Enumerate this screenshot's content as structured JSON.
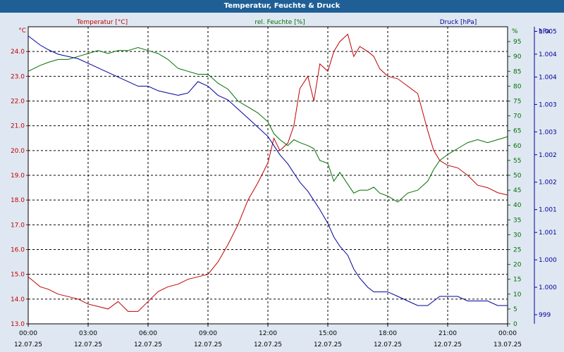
{
  "title": "Temperatur, Feuchte & Druck",
  "colors": {
    "temperature": "#c00000",
    "humidity": "#007000",
    "pressure": "#000099",
    "grid": "#000000",
    "title_bg": "#1f5f95"
  },
  "chart_data": {
    "type": "line",
    "grid": true,
    "x_axis": {
      "ticks": [
        "00:00",
        "03:00",
        "06:00",
        "09:00",
        "12:00",
        "15:00",
        "18:00",
        "21:00",
        "00:00"
      ],
      "dates": [
        "12.07.25",
        "12.07.25",
        "12.07.25",
        "12.07.25",
        "12.07.25",
        "12.07.25",
        "12.07.25",
        "12.07.25",
        "13.07.25"
      ],
      "xlim": [
        0,
        24
      ]
    },
    "axes": {
      "temperature": {
        "unit": "°C",
        "label": "Temperatur [°C]",
        "ylim": [
          13.0,
          25.0
        ],
        "ticks": [
          "13.0",
          "14.0",
          "15.0",
          "16.0",
          "17.0",
          "18.0",
          "19.0",
          "20.0",
          "21.0",
          "22.0",
          "23.0",
          "24.0"
        ],
        "tick_values": [
          13,
          14,
          15,
          16,
          17,
          18,
          19,
          20,
          21,
          22,
          23,
          24
        ]
      },
      "humidity": {
        "unit": "%",
        "label": "rel. Feuchte [%]",
        "ylim": [
          0,
          100
        ],
        "ticks": [
          "0",
          "5",
          "10",
          "15",
          "20",
          "25",
          "30",
          "35",
          "40",
          "45",
          "50",
          "55",
          "60",
          "65",
          "70",
          "75",
          "80",
          "85",
          "90",
          "95"
        ],
        "tick_values": [
          0,
          5,
          10,
          15,
          20,
          25,
          30,
          35,
          40,
          45,
          50,
          55,
          60,
          65,
          70,
          75,
          80,
          85,
          90,
          95
        ]
      },
      "pressure": {
        "unit": "hPa",
        "label": "Druck [hPa]",
        "ylim": [
          998.8,
          1005.3
        ],
        "ticks": [
          "999",
          "1.000",
          "1.000",
          "1.001",
          "1.001",
          "1.002",
          "1.002",
          "1.003",
          "1.003",
          "1.004",
          "1.004",
          "1.005"
        ],
        "tick_values": [
          999.0,
          999.6,
          1000.2,
          1000.8,
          1001.3,
          1001.9,
          1002.5,
          1003.0,
          1003.6,
          1004.2,
          1004.7,
          1005.2
        ]
      }
    },
    "series": [
      {
        "name": "Temperatur [°C]",
        "axis": "temperature",
        "x": [
          0,
          0.3,
          0.6,
          1,
          1.5,
          2,
          2.5,
          3,
          3.5,
          4,
          4.5,
          5,
          5.5,
          6,
          6.5,
          7,
          7.5,
          8,
          8.5,
          9,
          9.5,
          10,
          10.5,
          11,
          11.5,
          12,
          12.3,
          12.6,
          13,
          13.3,
          13.6,
          14,
          14.3,
          14.6,
          15,
          15.3,
          15.6,
          16,
          16.3,
          16.6,
          17,
          17.3,
          17.6,
          18,
          18.5,
          19,
          19.5,
          20,
          20.3,
          20.6,
          21,
          21.5,
          22,
          22.5,
          23,
          23.5,
          24
        ],
        "y": [
          14.9,
          14.7,
          14.5,
          14.4,
          14.2,
          14.1,
          14.0,
          13.8,
          13.7,
          13.6,
          13.9,
          13.5,
          13.5,
          13.9,
          14.3,
          14.5,
          14.6,
          14.8,
          14.9,
          15.0,
          15.5,
          16.2,
          17.0,
          18.0,
          18.7,
          19.5,
          20.5,
          20.0,
          20.3,
          21.0,
          22.5,
          23.0,
          22.0,
          23.5,
          23.2,
          24.0,
          24.4,
          24.7,
          23.8,
          24.2,
          24.0,
          23.8,
          23.3,
          23.0,
          22.9,
          22.6,
          22.3,
          20.8,
          20.0,
          19.6,
          19.4,
          19.3,
          19.0,
          18.6,
          18.5,
          18.3,
          18.2
        ]
      },
      {
        "name": "rel. Feuchte [%]",
        "axis": "humidity",
        "x": [
          0,
          0.3,
          0.6,
          1,
          1.5,
          2,
          2.5,
          3,
          3.5,
          4,
          4.5,
          5,
          5.5,
          6,
          6.5,
          7,
          7.5,
          8,
          8.5,
          9,
          9.5,
          10,
          10.5,
          11,
          11.5,
          12,
          12.3,
          12.6,
          13,
          13.3,
          13.6,
          14,
          14.3,
          14.6,
          15,
          15.3,
          15.6,
          16,
          16.3,
          16.6,
          17,
          17.3,
          17.6,
          18,
          18.5,
          19,
          19.5,
          20,
          20.3,
          20.6,
          21,
          21.5,
          22,
          22.5,
          23,
          23.5,
          24
        ],
        "y": [
          85,
          86,
          87,
          88,
          89,
          89,
          90,
          91,
          92,
          91,
          92,
          92,
          93,
          92,
          91,
          89,
          86,
          85,
          84,
          84,
          81,
          79,
          75,
          73,
          71,
          68,
          64,
          62,
          60,
          62,
          61,
          60,
          59,
          55,
          54,
          48,
          51,
          47,
          44,
          45,
          45,
          46,
          44,
          43,
          41,
          44,
          45,
          48,
          52,
          55,
          57,
          59,
          61,
          62,
          61,
          62,
          63
        ]
      },
      {
        "name": "Druck [hPa]",
        "axis": "pressure",
        "x": [
          0,
          0.3,
          0.6,
          1,
          1.5,
          2,
          2.5,
          3,
          3.5,
          4,
          4.5,
          5,
          5.5,
          6,
          6.5,
          7,
          7.5,
          8,
          8.5,
          9,
          9.5,
          10,
          10.5,
          11,
          11.5,
          12,
          12.3,
          12.6,
          13,
          13.3,
          13.6,
          14,
          14.3,
          14.6,
          15,
          15.3,
          15.6,
          16,
          16.3,
          16.6,
          17,
          17.3,
          17.6,
          18,
          18.5,
          19,
          19.5,
          20,
          20.3,
          20.6,
          21,
          21.5,
          22,
          22.5,
          23,
          23.5,
          24
        ],
        "y": [
          1005.1,
          1005.0,
          1004.9,
          1004.8,
          1004.7,
          1004.65,
          1004.6,
          1004.5,
          1004.4,
          1004.3,
          1004.2,
          1004.1,
          1004.0,
          1004.0,
          1003.9,
          1003.85,
          1003.8,
          1003.85,
          1004.1,
          1004.0,
          1003.8,
          1003.7,
          1003.5,
          1003.3,
          1003.1,
          1002.9,
          1002.7,
          1002.5,
          1002.3,
          1002.1,
          1001.9,
          1001.7,
          1001.5,
          1001.3,
          1001.0,
          1000.7,
          1000.5,
          1000.3,
          1000.0,
          999.8,
          999.6,
          999.5,
          999.5,
          999.5,
          999.4,
          999.3,
          999.2,
          999.2,
          999.3,
          999.4,
          999.4,
          999.4,
          999.3,
          999.3,
          999.3,
          999.2,
          999.2
        ]
      }
    ]
  }
}
